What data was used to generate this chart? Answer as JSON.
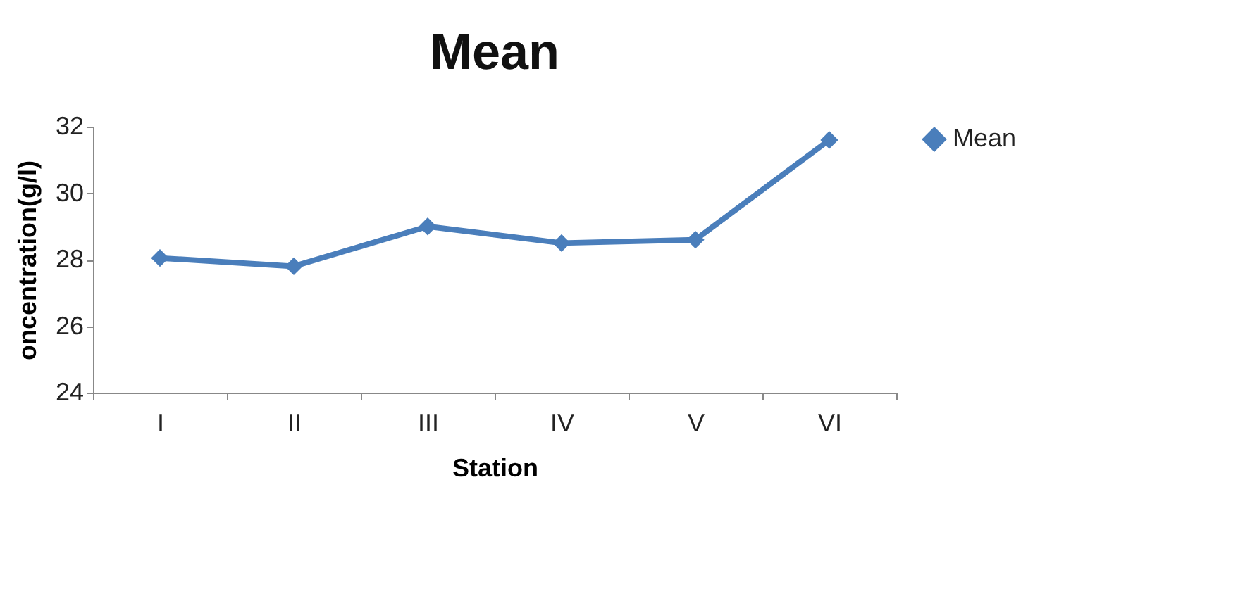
{
  "chart_data": {
    "type": "line",
    "title": "Mean",
    "xlabel": "Station",
    "ylabel": "oncentration(g/l)",
    "categories": [
      "I",
      "II",
      "III",
      "IV",
      "V",
      "VI"
    ],
    "series": [
      {
        "name": "Mean",
        "color": "#4a7ebb",
        "values": [
          28.05,
          27.8,
          29.0,
          28.5,
          28.6,
          31.6
        ]
      }
    ],
    "ylim": [
      24,
      32
    ],
    "yticks": [
      24,
      26,
      28,
      30,
      32
    ],
    "grid": false,
    "legend": "right",
    "marker": "diamond",
    "line_style": "solid"
  }
}
